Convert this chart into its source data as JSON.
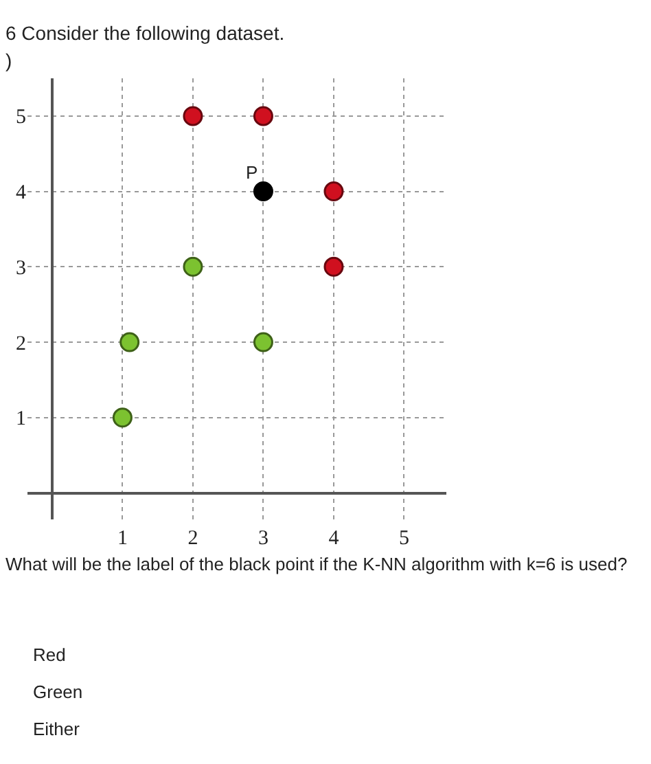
{
  "chart_data": {
    "type": "scatter",
    "title": "6 Consider the following dataset.",
    "subtitle": ")",
    "series": [
      {
        "color": "#d0101f",
        "x": [
          2,
          3,
          4,
          4
        ],
        "values": [
          5,
          5,
          4,
          3
        ]
      },
      {
        "color": "#7cc230",
        "x": [
          1,
          1.1,
          2,
          3
        ],
        "values": [
          1,
          2,
          3,
          2
        ]
      },
      {
        "color": "#000000",
        "x": [
          3
        ],
        "values": [
          4
        ]
      }
    ],
    "annotations": [
      {
        "text": "P",
        "x": 3,
        "y": 4
      },
      "What will be the label of the black point if the K-NN algorithm with k=6 is used?",
      "Red",
      "Green",
      "Either"
    ],
    "xlim": [
      -0.35,
      5.6
    ],
    "ylim": [
      -0.35,
      5.5
    ],
    "xticks": [
      1,
      2,
      3,
      4,
      5
    ],
    "yticks": [
      1,
      2,
      3,
      4,
      5
    ],
    "grid": true,
    "marker": "circle"
  }
}
